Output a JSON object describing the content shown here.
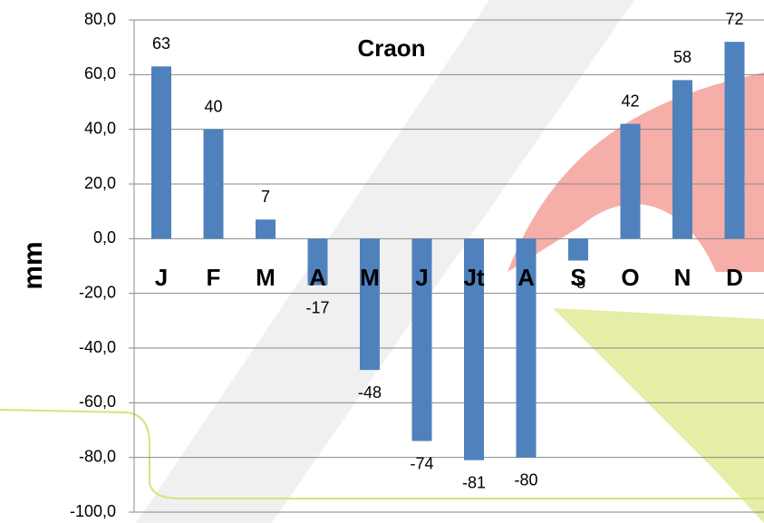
{
  "chart_data": {
    "type": "bar",
    "title": "Craon",
    "y_label": "mm",
    "categories": [
      "J",
      "F",
      "M",
      "A",
      "M",
      "J",
      "Jt",
      "A",
      "S",
      "O",
      "N",
      "D"
    ],
    "values": [
      63,
      40,
      7,
      -17,
      -48,
      -74,
      -81,
      -80,
      -8,
      42,
      58,
      72
    ],
    "color": "#4f81bd",
    "ylim": [
      -100,
      80
    ],
    "yticks": [
      {
        "value": -100,
        "label": "-100,0"
      },
      {
        "value": -80,
        "label": "-80,0"
      },
      {
        "value": -60,
        "label": "-60,0"
      },
      {
        "value": -40,
        "label": "-40,0"
      },
      {
        "value": -20,
        "label": "-20,0"
      },
      {
        "value": 0,
        "label": "0,0"
      },
      {
        "value": 20,
        "label": "20,0"
      },
      {
        "value": 40,
        "label": "40,0"
      },
      {
        "value": 60,
        "label": "60,0"
      },
      {
        "value": 80,
        "label": "80,0"
      }
    ],
    "grid": true
  }
}
